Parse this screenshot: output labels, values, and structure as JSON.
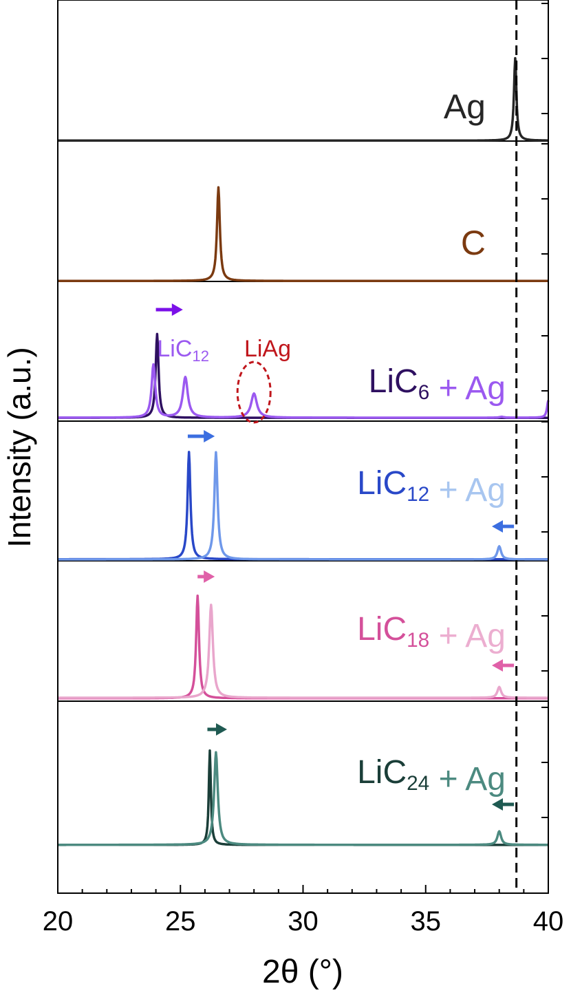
{
  "chart_data": {
    "type": "line",
    "title": "",
    "xlabel": "2θ (°)",
    "ylabel": "Intensity (a.u.)",
    "xlim": [
      20,
      40
    ],
    "xticks": [
      "20",
      "25",
      "30",
      "35",
      "40"
    ],
    "grid": false,
    "reference_line": {
      "x": 38.7,
      "style": "dashed",
      "color": "#000000"
    },
    "panels": [
      {
        "id": "ag",
        "label": [
          {
            "text": "Ag",
            "color": "#262626"
          }
        ],
        "series": [
          {
            "color": "#262626",
            "baseline": 0.05,
            "peaks": [
              {
                "x": 38.65,
                "h": 0.9,
                "w": 0.06
              }
            ]
          }
        ]
      },
      {
        "id": "c",
        "label": [
          {
            "text": "C",
            "color": "#7b3a10"
          }
        ],
        "series": [
          {
            "color": "#7b3a10",
            "baseline": 0.05,
            "peaks": [
              {
                "x": 26.55,
                "h": 0.9,
                "w": 0.07
              }
            ]
          }
        ]
      },
      {
        "id": "lic6",
        "label": [
          {
            "text": "LiC",
            "sub": "6",
            "color": "#2e1060"
          },
          {
            "text": " + Ag",
            "color": "#9b59f0"
          }
        ],
        "series": [
          {
            "color": "#2e1060",
            "baseline": 0.06,
            "peaks": [
              {
                "x": 24.05,
                "h": 0.87,
                "w": 0.07
              }
            ]
          },
          {
            "color": "#9b59f0",
            "baseline": 0.07,
            "peaks": [
              {
                "x": 23.9,
                "h": 0.55,
                "w": 0.09
              },
              {
                "x": 25.2,
                "h": 0.42,
                "w": 0.12
              },
              {
                "x": 28.0,
                "h": 0.25,
                "w": 0.14
              },
              {
                "x": 38.1,
                "h": 0.01,
                "w": 0.1
              },
              {
                "x": 40.0,
                "h": 0.18,
                "w": 0.06
              }
            ]
          }
        ],
        "annotations": [
          {
            "text": "LiC",
            "sub": "12",
            "color": "#9b59f0",
            "x": 24.05
          },
          {
            "text": "LiAg",
            "color": "#c0161c",
            "x": 27.6
          }
        ],
        "ellipse": {
          "x": 28.0,
          "color": "#c0161c"
        },
        "arrows": [
          {
            "from": 24.0,
            "to": 25.1,
            "dir": "right",
            "color": "#7b10e8"
          }
        ]
      },
      {
        "id": "lic12",
        "label": [
          {
            "text": "LiC",
            "sub": "12",
            "color": "#2948c8"
          },
          {
            "text": " + Ag",
            "color": "#a8c6f0"
          }
        ],
        "series": [
          {
            "color": "#2948c8",
            "baseline": 0.02,
            "peaks": [
              {
                "x": 25.35,
                "h": 0.98,
                "w": 0.07
              }
            ]
          },
          {
            "color": "#6f98ea",
            "baseline": 0.0,
            "peaks": [
              {
                "x": 26.45,
                "h": 0.98,
                "w": 0.08
              },
              {
                "x": 38.0,
                "h": 0.12,
                "w": 0.09
              }
            ]
          }
        ],
        "arrows": [
          {
            "from": 25.3,
            "to": 26.4,
            "dir": "right",
            "color": "#3b6ee0"
          },
          {
            "from": 38.6,
            "to": 37.7,
            "dir": "left",
            "color": "#3b6ee0"
          }
        ]
      },
      {
        "id": "lic18",
        "label": [
          {
            "text": "LiC",
            "sub": "18",
            "color": "#d4509a"
          },
          {
            "text": " + Ag",
            "color": "#ecaed0"
          }
        ],
        "series": [
          {
            "color": "#d4509a",
            "baseline": 0.01,
            "peaks": [
              {
                "x": 25.7,
                "h": 0.95,
                "w": 0.07
              }
            ]
          },
          {
            "color": "#e9a6cc",
            "baseline": 0.06,
            "peaks": [
              {
                "x": 26.25,
                "h": 0.86,
                "w": 0.09
              },
              {
                "x": 38.0,
                "h": 0.1,
                "w": 0.09
              }
            ]
          }
        ],
        "arrows": [
          {
            "from": 25.7,
            "to": 26.4,
            "dir": "right",
            "color": "#e060a8"
          },
          {
            "from": 38.6,
            "to": 37.7,
            "dir": "left",
            "color": "#e060a8"
          }
        ]
      },
      {
        "id": "lic24",
        "label": [
          {
            "text": "LiC",
            "sub": "24",
            "color": "#1a3e38"
          },
          {
            "text": " + Ag",
            "color": "#4c8a80"
          }
        ],
        "series": [
          {
            "color": "#1a3e38",
            "baseline": 0.01,
            "peaks": [
              {
                "x": 26.2,
                "h": 0.98,
                "w": 0.05
              }
            ]
          },
          {
            "color": "#4c8a80",
            "baseline": 0.02,
            "peaks": [
              {
                "x": 26.45,
                "h": 0.96,
                "w": 0.09
              },
              {
                "x": 38.0,
                "h": 0.14,
                "w": 0.09
              }
            ]
          }
        ],
        "arrows": [
          {
            "from": 26.1,
            "to": 26.9,
            "dir": "right",
            "color": "#1f5a52"
          },
          {
            "from": 38.6,
            "to": 37.7,
            "dir": "left",
            "color": "#1f5a52"
          }
        ]
      }
    ]
  }
}
